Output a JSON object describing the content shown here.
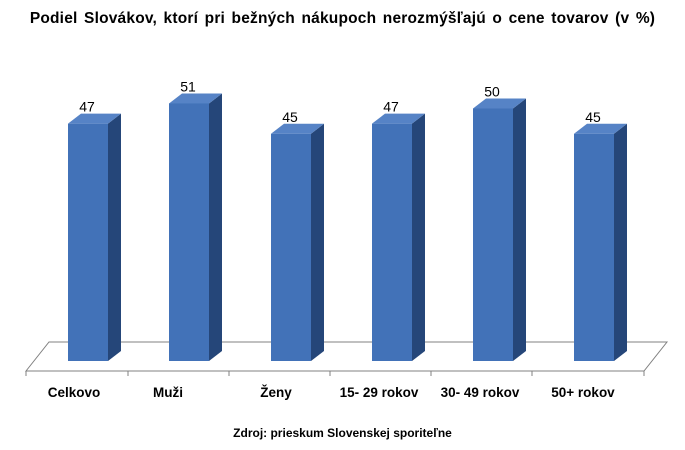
{
  "chart_data": {
    "type": "bar",
    "title": "Podiel  Slovákov,  ktorí  pri  bežných  nákupoch  nerozmýšľajú  o cene  tovarov  (v %)",
    "categories": [
      "Celkovo",
      "Muži",
      "Ženy",
      "15- 29 rokov",
      "30- 49 rokov",
      "50+ rokov"
    ],
    "values": [
      47,
      51,
      45,
      47,
      50,
      45
    ],
    "data_labels": [
      "47",
      "51",
      "45",
      "47",
      "50",
      "45"
    ],
    "xlabel": "",
    "ylabel": "",
    "ylim": [
      0,
      51
    ],
    "grid": false,
    "legend": "none",
    "style": "3d-column",
    "colors": {
      "bar_front": "#4272B8",
      "bar_side": "#254679",
      "bar_top": "#5683C6",
      "floor_line": "#808080"
    }
  },
  "source": "Zdroj: prieskum Slovenskej sporiteľne"
}
